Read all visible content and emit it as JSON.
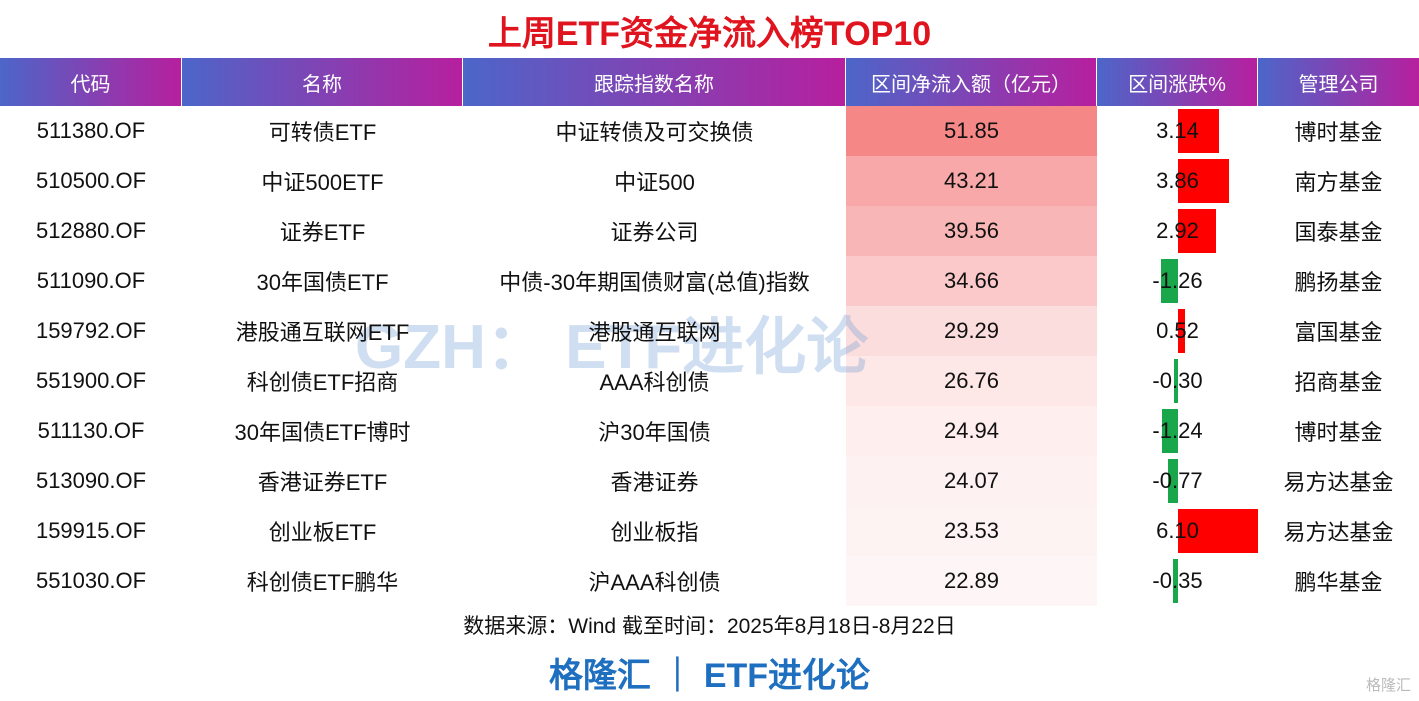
{
  "header": {
    "title": "上周ETF资金净流入榜TOP10"
  },
  "table": {
    "columns": [
      "代码",
      "名称",
      "跟踪指数名称",
      "区间净流入额（亿元）",
      "区间涨跌%",
      "管理公司"
    ],
    "rows": [
      [
        "511380.OF",
        "可转债ETF",
        "中证转债及可交换债",
        51.85,
        "3.14",
        "博时基金"
      ],
      [
        "510500.OF",
        "中证500ETF",
        "中证500",
        43.21,
        "3.86",
        "南方基金"
      ],
      [
        "512880.OF",
        "证券ETF",
        "证券公司",
        39.56,
        "2.92",
        "国泰基金"
      ],
      [
        "511090.OF",
        "30年国债ETF",
        "中债-30年期国债财富(总值)指数",
        34.66,
        "-1.26",
        "鹏扬基金"
      ],
      [
        "159792.OF",
        "港股通互联网ETF",
        "港股通互联网",
        29.29,
        "0.52",
        "富国基金"
      ],
      [
        "551900.OF",
        "科创债ETF招商",
        "AAA科创债",
        26.76,
        "-0.30",
        "招商基金"
      ],
      [
        "511130.OF",
        "30年国债ETF博时",
        "沪30年国债",
        24.94,
        "-1.24",
        "博时基金"
      ],
      [
        "513090.OF",
        "香港证券ETF",
        "香港证券",
        24.07,
        "-0.77",
        "易方达基金"
      ],
      [
        "159915.OF",
        "创业板ETF",
        "创业板指",
        23.53,
        "6.10",
        "易方达基金"
      ],
      [
        "551030.OF",
        "科创债ETF鹏华",
        "沪AAA科创债",
        22.89,
        "-0.35",
        "鹏华基金"
      ]
    ]
  },
  "watermark": "GZH： ETF进化论",
  "footer": {
    "source": "数据来源：Wind 截至时间：2025年8月18日-8月22日",
    "brand": "格隆汇 ｜ ETF进化论",
    "logo": "格隆汇"
  }
}
